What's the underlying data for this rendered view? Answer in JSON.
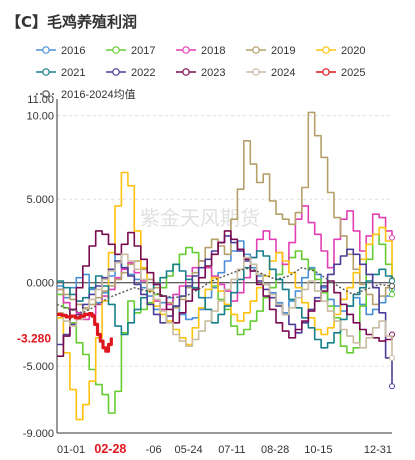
{
  "title": "【C】毛鸡养殖利润",
  "watermark": "紫金天风期货",
  "colors": {
    "2016": "#4a90d9",
    "2017": "#66cc33",
    "2018": "#e23fb5",
    "2019": "#b5a06a",
    "2020": "#ffc20e",
    "2021": "#17808a",
    "2022": "#4d3d99",
    "2023": "#7a0b52",
    "2024": "#c9bca0",
    "2025": "#e0161e",
    "avg": "#555555"
  },
  "chart_data": {
    "type": "line",
    "title": "【C】毛鸡养殖利润",
    "x_ticks": [
      "01-01",
      "02-28",
      "-06",
      "05-24",
      "07-11",
      "08-28",
      "10-15",
      "12-31"
    ],
    "x_highlight": "02-28",
    "ylim": [
      -9000,
      11000
    ],
    "y_ticks": [
      "-9.000",
      "-5.000",
      "0.000",
      "5.000",
      "10.00",
      "11.00"
    ],
    "y_tick_values": [
      -9000,
      -5000,
      0,
      5000,
      10000,
      11000
    ],
    "last_value_label": "-3.280",
    "legend_position": "top",
    "series": [
      {
        "name": "2016",
        "key": "2016",
        "x": [
          0,
          7,
          14,
          21,
          28,
          35,
          42,
          49,
          56,
          63,
          70,
          77,
          84,
          91,
          98,
          105,
          112,
          119,
          126,
          133,
          140,
          147,
          154,
          161,
          168,
          175,
          182,
          189,
          196,
          203,
          210,
          217,
          224,
          231,
          238,
          245,
          252,
          259,
          266,
          273,
          280,
          287,
          294,
          301,
          308,
          315,
          322,
          329,
          336,
          343,
          350,
          357,
          364
        ],
        "y": [
          -200,
          -900,
          -300,
          300,
          500,
          -400,
          -1200,
          -600,
          400,
          1700,
          900,
          500,
          200,
          -300,
          -800,
          -1600,
          -1200,
          -900,
          -1400,
          -1900,
          -2200,
          -2100,
          -1600,
          -900,
          -300,
          600,
          1300,
          1900,
          2500,
          1700,
          900,
          400,
          -100,
          -600,
          -1200,
          -1800,
          -1100,
          -500,
          300,
          900,
          500,
          -300,
          -1000,
          -1400,
          -1700,
          -1400,
          -900,
          -1300,
          -1900,
          -1600,
          -1200,
          -800,
          -400
        ]
      },
      {
        "name": "2017",
        "key": "2017",
        "x": [
          0,
          7,
          14,
          21,
          28,
          35,
          42,
          49,
          56,
          63,
          70,
          77,
          84,
          91,
          98,
          105,
          112,
          119,
          126,
          133,
          140,
          147,
          154,
          161,
          168,
          175,
          182,
          189,
          196,
          203,
          210,
          217,
          224,
          231,
          238,
          245,
          252,
          259,
          266,
          273,
          280,
          287,
          294,
          301,
          308,
          315,
          322,
          329,
          336,
          343,
          350,
          357,
          364
        ],
        "y": [
          -700,
          -1500,
          -2400,
          -3600,
          -4300,
          -5200,
          -6100,
          -6700,
          -7800,
          -6500,
          -3000,
          -1100,
          -1800,
          -1600,
          -1200,
          -700,
          -300,
          400,
          1100,
          1700,
          2100,
          1800,
          1300,
          900,
          -200,
          -1000,
          -1600,
          -2600,
          -3100,
          -2800,
          -2300,
          -1700,
          -900,
          -300,
          500,
          1100,
          1500,
          1900,
          1400,
          800,
          200,
          -600,
          -1400,
          -2100,
          -3800,
          -4200,
          -3900,
          -1400,
          1400,
          2900,
          2300,
          1100,
          -700
        ]
      },
      {
        "name": "2018",
        "key": "2018",
        "x": [
          0,
          7,
          14,
          21,
          28,
          35,
          42,
          49,
          56,
          63,
          70,
          77,
          84,
          91,
          98,
          105,
          112,
          119,
          126,
          133,
          140,
          147,
          154,
          161,
          168,
          175,
          182,
          189,
          196,
          203,
          210,
          217,
          224,
          231,
          238,
          245,
          252,
          259,
          266,
          273,
          280,
          287,
          294,
          301,
          308,
          315,
          322,
          329,
          336,
          343,
          350,
          357,
          364
        ],
        "y": [
          -400,
          -1200,
          -1600,
          -1800,
          -2200,
          -1900,
          -1300,
          -800,
          -400,
          300,
          800,
          1200,
          600,
          100,
          -500,
          -1100,
          -1600,
          -1300,
          -700,
          -200,
          400,
          900,
          1300,
          900,
          400,
          -100,
          -500,
          -1100,
          -600,
          300,
          1500,
          2600,
          3100,
          2600,
          1800,
          1100,
          2400,
          3800,
          4600,
          3600,
          2900,
          1900,
          900,
          2600,
          3800,
          4300,
          3100,
          1900,
          2800,
          4100,
          3900,
          3100,
          2700
        ]
      },
      {
        "name": "2019",
        "key": "2019",
        "x": [
          0,
          7,
          14,
          21,
          28,
          35,
          42,
          49,
          56,
          63,
          70,
          77,
          84,
          91,
          98,
          105,
          112,
          119,
          126,
          133,
          140,
          147,
          154,
          161,
          168,
          175,
          182,
          189,
          196,
          203,
          210,
          217,
          224,
          231,
          238,
          245,
          252,
          259,
          266,
          273,
          280,
          287,
          294,
          301,
          308,
          315,
          322,
          329,
          336,
          343,
          350,
          357,
          364
        ],
        "y": [
          -400,
          -700,
          -1000,
          -1300,
          -1500,
          -1300,
          -900,
          -500,
          -200,
          200,
          600,
          1100,
          1300,
          800,
          200,
          -300,
          -800,
          -1200,
          -1500,
          -1000,
          -300,
          600,
          1300,
          2100,
          2600,
          2200,
          1700,
          3800,
          5600,
          8500,
          7100,
          6000,
          6500,
          4900,
          4100,
          3800,
          3500,
          4200,
          5700,
          10200,
          8800,
          7500,
          5400,
          3900,
          2800,
          1700,
          800,
          -100,
          -700,
          -1300,
          -800,
          -300,
          200
        ]
      },
      {
        "name": "2020",
        "key": "2020",
        "x": [
          0,
          7,
          14,
          21,
          28,
          35,
          42,
          49,
          56,
          63,
          70,
          77,
          84,
          91,
          98,
          105,
          112,
          119,
          126,
          133,
          140,
          147,
          154,
          161,
          168,
          175,
          182,
          189,
          196,
          203,
          210,
          217,
          224,
          231,
          238,
          245,
          252,
          259,
          266,
          273,
          280,
          287,
          294,
          301,
          308,
          315,
          322,
          329,
          336,
          343,
          350,
          357,
          364
        ],
        "y": [
          -2100,
          -4200,
          -6400,
          -8200,
          -7300,
          -5900,
          -3300,
          -1100,
          1800,
          4600,
          6600,
          5800,
          3100,
          900,
          -500,
          -1400,
          -1900,
          -2300,
          -2800,
          -3300,
          -3700,
          -2700,
          -1500,
          -400,
          300,
          -500,
          -1300,
          -1900,
          -2300,
          -1800,
          -1100,
          -300,
          400,
          1300,
          1800,
          1300,
          600,
          -300,
          -1200,
          -2100,
          -2800,
          -3100,
          -2700,
          -1900,
          -1000,
          -300,
          600,
          1400,
          2300,
          2900,
          3300,
          2500,
          -200
        ]
      },
      {
        "name": "2021",
        "key": "2021",
        "x": [
          0,
          7,
          14,
          21,
          28,
          35,
          42,
          49,
          56,
          63,
          70,
          77,
          84,
          91,
          98,
          105,
          112,
          119,
          126,
          133,
          140,
          147,
          154,
          161,
          168,
          175,
          182,
          189,
          196,
          203,
          210,
          217,
          224,
          231,
          238,
          245,
          252,
          259,
          266,
          273,
          280,
          287,
          294,
          301,
          308,
          315,
          322,
          329,
          336,
          343,
          350,
          357,
          364
        ],
        "y": [
          100,
          -300,
          -700,
          -1100,
          -900,
          -300,
          400,
          -200,
          -1300,
          -2600,
          -3100,
          -2400,
          -1600,
          -900,
          -400,
          -100,
          300,
          700,
          1100,
          700,
          200,
          -300,
          -900,
          -1600,
          -2400,
          -1900,
          -1400,
          -600,
          200,
          900,
          1500,
          1900,
          1600,
          800,
          200,
          -400,
          -1000,
          -1500,
          -2100,
          -2700,
          -3400,
          -3900,
          -3600,
          -3000,
          -2200,
          -1400,
          -700,
          -300,
          100,
          500,
          800,
          400,
          100
        ]
      },
      {
        "name": "2022",
        "key": "2022",
        "x": [
          0,
          7,
          14,
          21,
          28,
          35,
          42,
          49,
          56,
          63,
          70,
          77,
          84,
          91,
          98,
          105,
          112,
          119,
          126,
          133,
          140,
          147,
          154,
          161,
          168,
          175,
          182,
          189,
          196,
          203,
          210,
          217,
          224,
          231,
          238,
          245,
          252,
          259,
          266,
          273,
          280,
          287,
          294,
          301,
          308,
          315,
          322,
          329,
          336,
          343,
          350,
          357,
          364
        ],
        "y": [
          -3700,
          -3100,
          -2500,
          -1900,
          -1300,
          -700,
          -200,
          300,
          800,
          1300,
          900,
          400,
          -100,
          -700,
          -1300,
          -1900,
          -2400,
          -2000,
          -1400,
          -800,
          -200,
          400,
          900,
          1400,
          1900,
          2400,
          2800,
          2400,
          1900,
          1300,
          700,
          100,
          -400,
          -900,
          -1400,
          -1900,
          -2500,
          -3000,
          -2400,
          -1600,
          -900,
          -200,
          500,
          1100,
          1600,
          2000,
          1700,
          1100,
          500,
          -300,
          -1800,
          -4500,
          -6200
        ]
      },
      {
        "name": "2023",
        "key": "2023",
        "x": [
          0,
          7,
          14,
          21,
          28,
          35,
          42,
          49,
          56,
          63,
          70,
          77,
          84,
          91,
          98,
          105,
          112,
          119,
          126,
          133,
          140,
          147,
          154,
          161,
          168,
          175,
          182,
          189,
          196,
          203,
          210,
          217,
          224,
          231,
          238,
          245,
          252,
          259,
          266,
          273,
          280,
          287,
          294,
          301,
          308,
          315,
          322,
          329,
          336,
          343,
          350,
          357,
          364
        ],
        "y": [
          -4400,
          -3200,
          -1600,
          -300,
          1000,
          2200,
          3100,
          2900,
          2300,
          1700,
          2300,
          3000,
          2200,
          1400,
          600,
          -100,
          -800,
          -1600,
          -2400,
          -1800,
          -1100,
          -400,
          300,
          1000,
          1700,
          2400,
          3100,
          2600,
          2000,
          1400,
          700,
          -100,
          -800,
          -1600,
          -2400,
          -2900,
          -3300,
          -2800,
          -2300,
          -1700,
          -1100,
          -500,
          100,
          -600,
          -1300,
          -1900,
          -2400,
          -2800,
          -3100,
          -3300,
          -3500,
          -3400,
          -3100
        ]
      },
      {
        "name": "2024",
        "key": "2024",
        "x": [
          0,
          7,
          14,
          21,
          28,
          35,
          42,
          49,
          56,
          63,
          70,
          77,
          84,
          91,
          98,
          105,
          112,
          119,
          126,
          133,
          140,
          147,
          154,
          161,
          168,
          175,
          182,
          189,
          196,
          203,
          210,
          217,
          224,
          231,
          238,
          245,
          252,
          259,
          266,
          273,
          280,
          287,
          294,
          301,
          308,
          315,
          322,
          329,
          336,
          343,
          350,
          357,
          364
        ],
        "y": [
          -1800,
          -2300,
          -2600,
          -2200,
          -1600,
          -1000,
          -400,
          200,
          700,
          1200,
          1700,
          1300,
          800,
          200,
          -400,
          -1000,
          -1700,
          -2400,
          -3100,
          -3500,
          -3800,
          -3400,
          -2900,
          -2300,
          -1700,
          -1100,
          -400,
          200,
          800,
          1500,
          1100,
          500,
          -100,
          -700,
          -1300,
          -1900,
          -1500,
          -900,
          -400,
          100,
          -500,
          -1100,
          -1700,
          -2300,
          -2800,
          -3200,
          -3600,
          -3900,
          -3300,
          -2700,
          -2300,
          -3200,
          -4500
        ]
      },
      {
        "name": "2025",
        "key": "2025",
        "x": [
          0,
          5,
          10,
          15,
          20,
          25,
          30,
          35,
          38,
          41,
          44,
          47,
          50,
          53,
          56,
          59
        ],
        "y": [
          -1900,
          -1950,
          -2050,
          -2000,
          -2100,
          -2000,
          -1900,
          -1850,
          -2000,
          -2500,
          -3100,
          -3500,
          -3900,
          -4100,
          -3700,
          -3280
        ]
      },
      {
        "name": "2016-2024均值",
        "key": "avg",
        "dashed": true,
        "x": [
          0,
          14,
          28,
          42,
          56,
          70,
          84,
          98,
          112,
          126,
          140,
          154,
          168,
          182,
          196,
          210,
          224,
          238,
          252,
          266,
          280,
          294,
          308,
          322,
          336,
          350,
          364
        ],
        "y": [
          -1300,
          -1600,
          -1800,
          -1400,
          -900,
          -600,
          -300,
          -500,
          -700,
          -900,
          -800,
          -400,
          100,
          400,
          700,
          900,
          500,
          200,
          400,
          900,
          700,
          200,
          -300,
          -700,
          -400,
          -100,
          -200
        ]
      }
    ]
  }
}
